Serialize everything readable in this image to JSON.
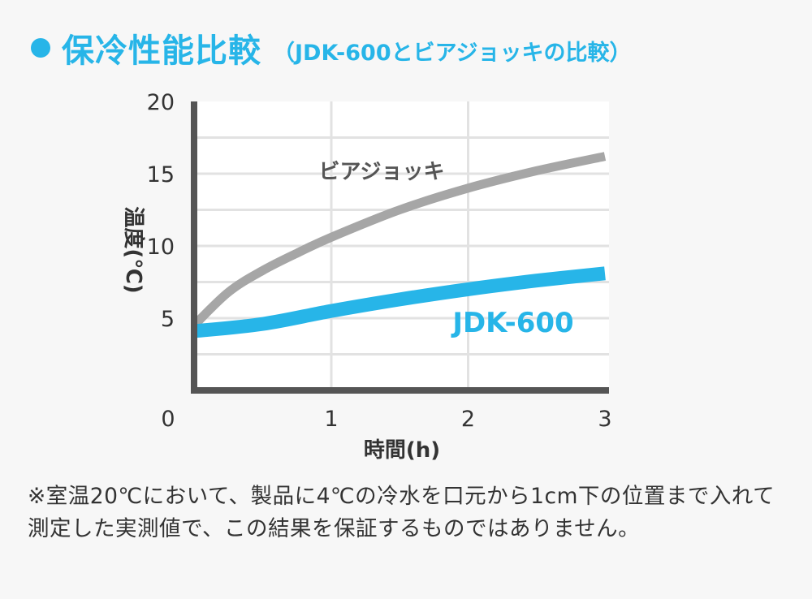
{
  "header": {
    "bullet_color": "#27b5e8",
    "title": "保冷性能比較",
    "subtitle": "（JDK-600とビアジョッキの比較）"
  },
  "chart_data": {
    "type": "line",
    "x_ticks": [
      "0",
      "1",
      "2",
      "3"
    ],
    "y_ticks": [
      "5",
      "10",
      "15",
      "20"
    ],
    "xlim": [
      0,
      3
    ],
    "ylim": [
      0,
      20
    ],
    "xlabel": "時間(h)",
    "ylabel": "温度(℃)",
    "grid": true,
    "series": [
      {
        "name": "ビアジョッキ",
        "color": "#a6a6a6",
        "x": [
          0,
          0.25,
          0.5,
          0.75,
          1,
          1.5,
          2,
          2.5,
          3
        ],
        "y": [
          4.5,
          6.8,
          8.3,
          9.5,
          10.6,
          12.5,
          14.0,
          15.2,
          16.2
        ]
      },
      {
        "name": "JDK-600",
        "color": "#27b5e8",
        "x": [
          0,
          0.5,
          1,
          1.5,
          2,
          2.5,
          3
        ],
        "y": [
          4.1,
          4.6,
          5.5,
          6.3,
          7.0,
          7.6,
          8.1
        ]
      }
    ]
  },
  "note": "※室温20℃において、製品に4℃の冷水を口元から1cm下の位置まで入れて測定した実測値で、この結果を保証するものではありません。"
}
